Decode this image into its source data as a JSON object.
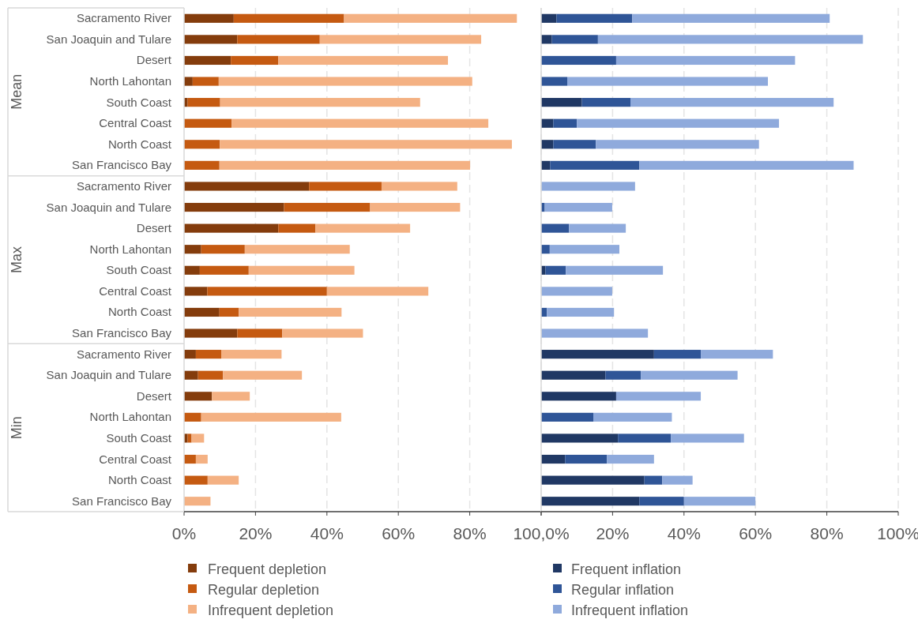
{
  "chart_data": [
    {
      "type": "bar",
      "orientation": "horizontal",
      "stacked": true,
      "grid": "x",
      "legend": "bottom",
      "categories": [
        "Sacramento River",
        "San Joaquin and Tulare",
        "Desert",
        "North Lahontan",
        "South Coast",
        "Central Coast",
        "North Coast",
        "San Francisco Bay",
        "Sacramento River",
        "San Joaquin and Tulare",
        "Desert",
        "North Lahontan",
        "South Coast",
        "Central Coast",
        "North Coast",
        "San Francisco Bay",
        "Sacramento River",
        "San Joaquin and Tulare",
        "Desert",
        "North Lahontan",
        "South Coast",
        "Central Coast",
        "North Coast",
        "San Francisco Bay"
      ],
      "annotations": [
        "Mean",
        "Max",
        "Min"
      ],
      "xlim": [
        0,
        100
      ],
      "xticks": [
        {
          "value": 0,
          "label": "0%"
        },
        {
          "value": 20,
          "label": "20%"
        },
        {
          "value": 40,
          "label": "40%"
        },
        {
          "value": 60,
          "label": "60%"
        },
        {
          "value": 80,
          "label": "80%"
        },
        {
          "value": 100,
          "label": "100,0%"
        }
      ],
      "series": [
        {
          "name": "Frequent depletion",
          "color": "#843c0c",
          "values": [
            13.9,
            14.9,
            13.1,
            2.4,
            1.0,
            0,
            0,
            0,
            35.0,
            28.0,
            26.4,
            4.8,
            4.4,
            6.5,
            9.9,
            14.9,
            3.3,
            3.9,
            7.8,
            0,
            1.0,
            0,
            0,
            0
          ]
        },
        {
          "name": "Regular depletion",
          "color": "#c55a11",
          "values": [
            30.9,
            23.1,
            13.3,
            7.3,
            9.1,
            13.3,
            10.0,
            9.9,
            20.3,
            24.1,
            10.4,
            12.2,
            13.7,
            33.5,
            5.4,
            12.6,
            7.1,
            7.0,
            0,
            4.8,
            1.1,
            3.3,
            6.6,
            0
          ]
        },
        {
          "name": "Infrequent depletion",
          "color": "#f4b183",
          "values": [
            48.4,
            45.2,
            47.5,
            71.0,
            56.0,
            71.9,
            81.8,
            70.2,
            21.2,
            25.2,
            26.5,
            29.4,
            29.6,
            28.4,
            28.8,
            22.6,
            16.9,
            22.1,
            10.6,
            39.2,
            3.5,
            3.3,
            8.7,
            7.4
          ]
        }
      ]
    },
    {
      "type": "bar",
      "orientation": "horizontal",
      "stacked": true,
      "grid": "x",
      "legend": "bottom",
      "tick_labels": "x",
      "categories": [
        null,
        null,
        null,
        null,
        null,
        null,
        null,
        null,
        null,
        null,
        null,
        null,
        null,
        null,
        null,
        null,
        null,
        null,
        null,
        null,
        null,
        null,
        null,
        null
      ],
      "xlim": [
        0,
        100
      ],
      "xticks": [
        {
          "value": 0,
          "label": null
        },
        {
          "value": 20,
          "label": "20%"
        },
        {
          "value": 40,
          "label": "40%"
        },
        {
          "value": 60,
          "label": "60%"
        },
        {
          "value": 80,
          "label": "80%"
        },
        {
          "value": 100,
          "label": "100%"
        }
      ],
      "series": [
        {
          "name": "Frequent inflation",
          "color": "#203864",
          "values": [
            4.3,
            3.0,
            0,
            0,
            11.4,
            3.4,
            3.4,
            2.5,
            0,
            0,
            0,
            0,
            1.2,
            0,
            0,
            0,
            31.6,
            18.0,
            21.0,
            0,
            21.5,
            6.7,
            28.9,
            27.5
          ]
        },
        {
          "name": "Regular inflation",
          "color": "#2f5597",
          "values": [
            21.2,
            12.9,
            21.0,
            7.3,
            13.6,
            6.6,
            11.9,
            25.0,
            0,
            1.0,
            7.8,
            2.4,
            5.7,
            0,
            1.6,
            0,
            13.1,
            9.9,
            0,
            14.6,
            14.8,
            11.7,
            5.0,
            12.5
          ]
        },
        {
          "name": "Infrequent inflation",
          "color": "#8faadc",
          "values": [
            55.3,
            74.2,
            50.1,
            56.2,
            56.9,
            56.6,
            45.7,
            60.0,
            26.3,
            18.9,
            15.9,
            19.5,
            27.2,
            19.9,
            18.8,
            29.9,
            20.2,
            27.1,
            23.7,
            22.0,
            20.5,
            13.2,
            8.5,
            20.0
          ]
        }
      ]
    }
  ]
}
